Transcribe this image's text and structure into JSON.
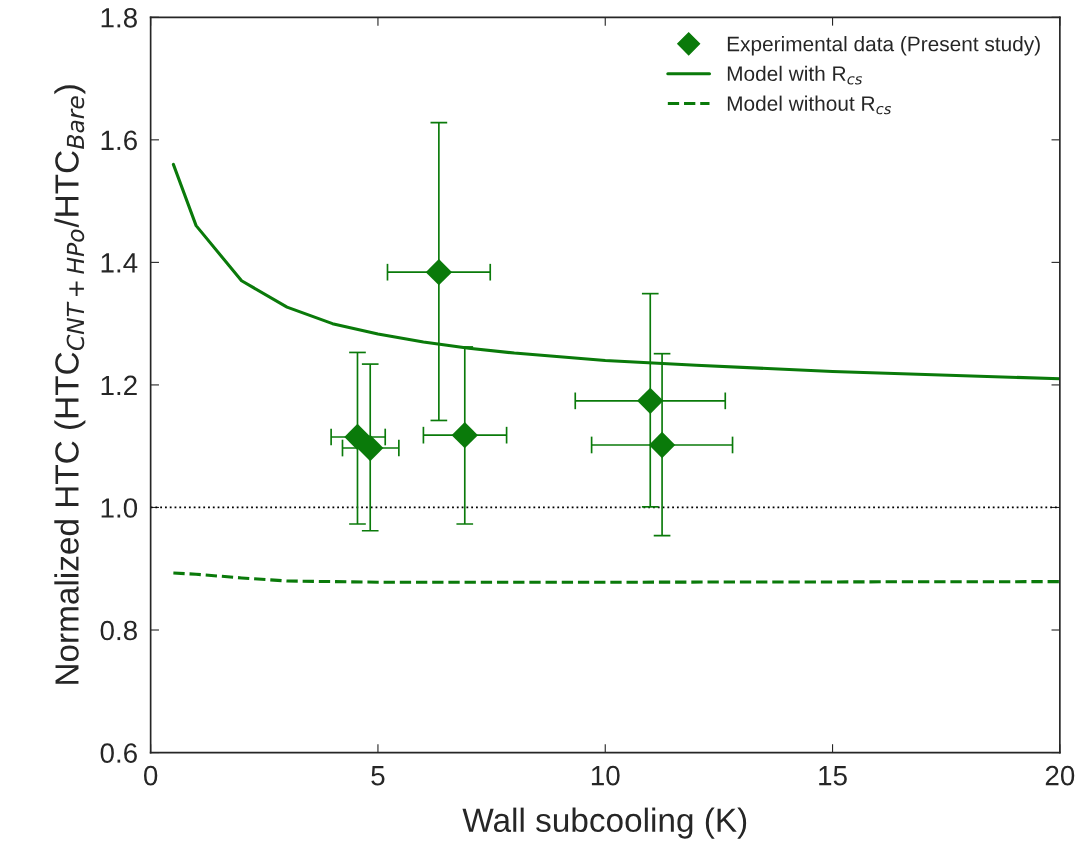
{
  "chart_data": {
    "type": "scatter",
    "xlabel": "Wall subcooling (K)",
    "ylabel": "Normalized HTC (HTC$_{CNT+HPo}$/HTC$_{Bare}$)",
    "xlim": [
      0,
      20
    ],
    "ylim": [
      0.6,
      1.8
    ],
    "xticks": [
      0,
      5,
      10,
      15,
      20
    ],
    "yticks": [
      0.6,
      0.8,
      {
        "value": 1.0,
        "label": "1.0"
      },
      1.2,
      1.4,
      1.6,
      1.8
    ],
    "grid": false,
    "legend": "top right",
    "ref_lines": [
      {
        "axis": "y",
        "value": 1.0,
        "color": "#000000",
        "line_style": "dotted"
      }
    ],
    "series": [
      {
        "name": "Experimental data (Present study)",
        "marker": "diamond",
        "color": "#0a7a0a",
        "x": [
          4.55,
          4.83,
          6.34,
          6.91,
          10.99,
          11.25
        ],
        "values": [
          1.115,
          1.097,
          1.384,
          1.118,
          1.174,
          1.102
        ],
        "errors": [
          [
            0.973,
            1.253
          ],
          [
            0.962,
            1.234
          ],
          [
            1.142,
            1.628
          ],
          [
            0.973,
            1.262
          ],
          [
            1.001,
            1.349
          ],
          [
            0.954,
            1.251
          ]
        ],
        "xerrors": [
          [
            3.97,
            5.16
          ],
          [
            4.22,
            5.46
          ],
          [
            5.21,
            7.47
          ],
          [
            6.0,
            7.83
          ],
          [
            9.34,
            12.64
          ],
          [
            9.7,
            12.8
          ]
        ]
      },
      {
        "name": "Model with R$_{cs}$",
        "type": "line",
        "line_style": "solid",
        "marker": "none",
        "color": "#0a7a0a",
        "x": [
          0.5,
          1,
          2,
          3,
          4,
          5,
          6,
          7,
          8,
          10,
          12,
          15,
          20
        ],
        "values": [
          1.56,
          1.46,
          1.37,
          1.327,
          1.3,
          1.283,
          1.27,
          1.26,
          1.252,
          1.24,
          1.232,
          1.222,
          1.21
        ]
      },
      {
        "name": "Model without R$_{cs}$",
        "type": "line",
        "line_style": "dashed",
        "marker": "none",
        "color": "#0a7a0a",
        "x": [
          0.5,
          1,
          2,
          3,
          5,
          10,
          20
        ],
        "values": [
          0.893,
          0.891,
          0.885,
          0.88,
          0.878,
          0.878,
          0.879
        ]
      }
    ]
  }
}
